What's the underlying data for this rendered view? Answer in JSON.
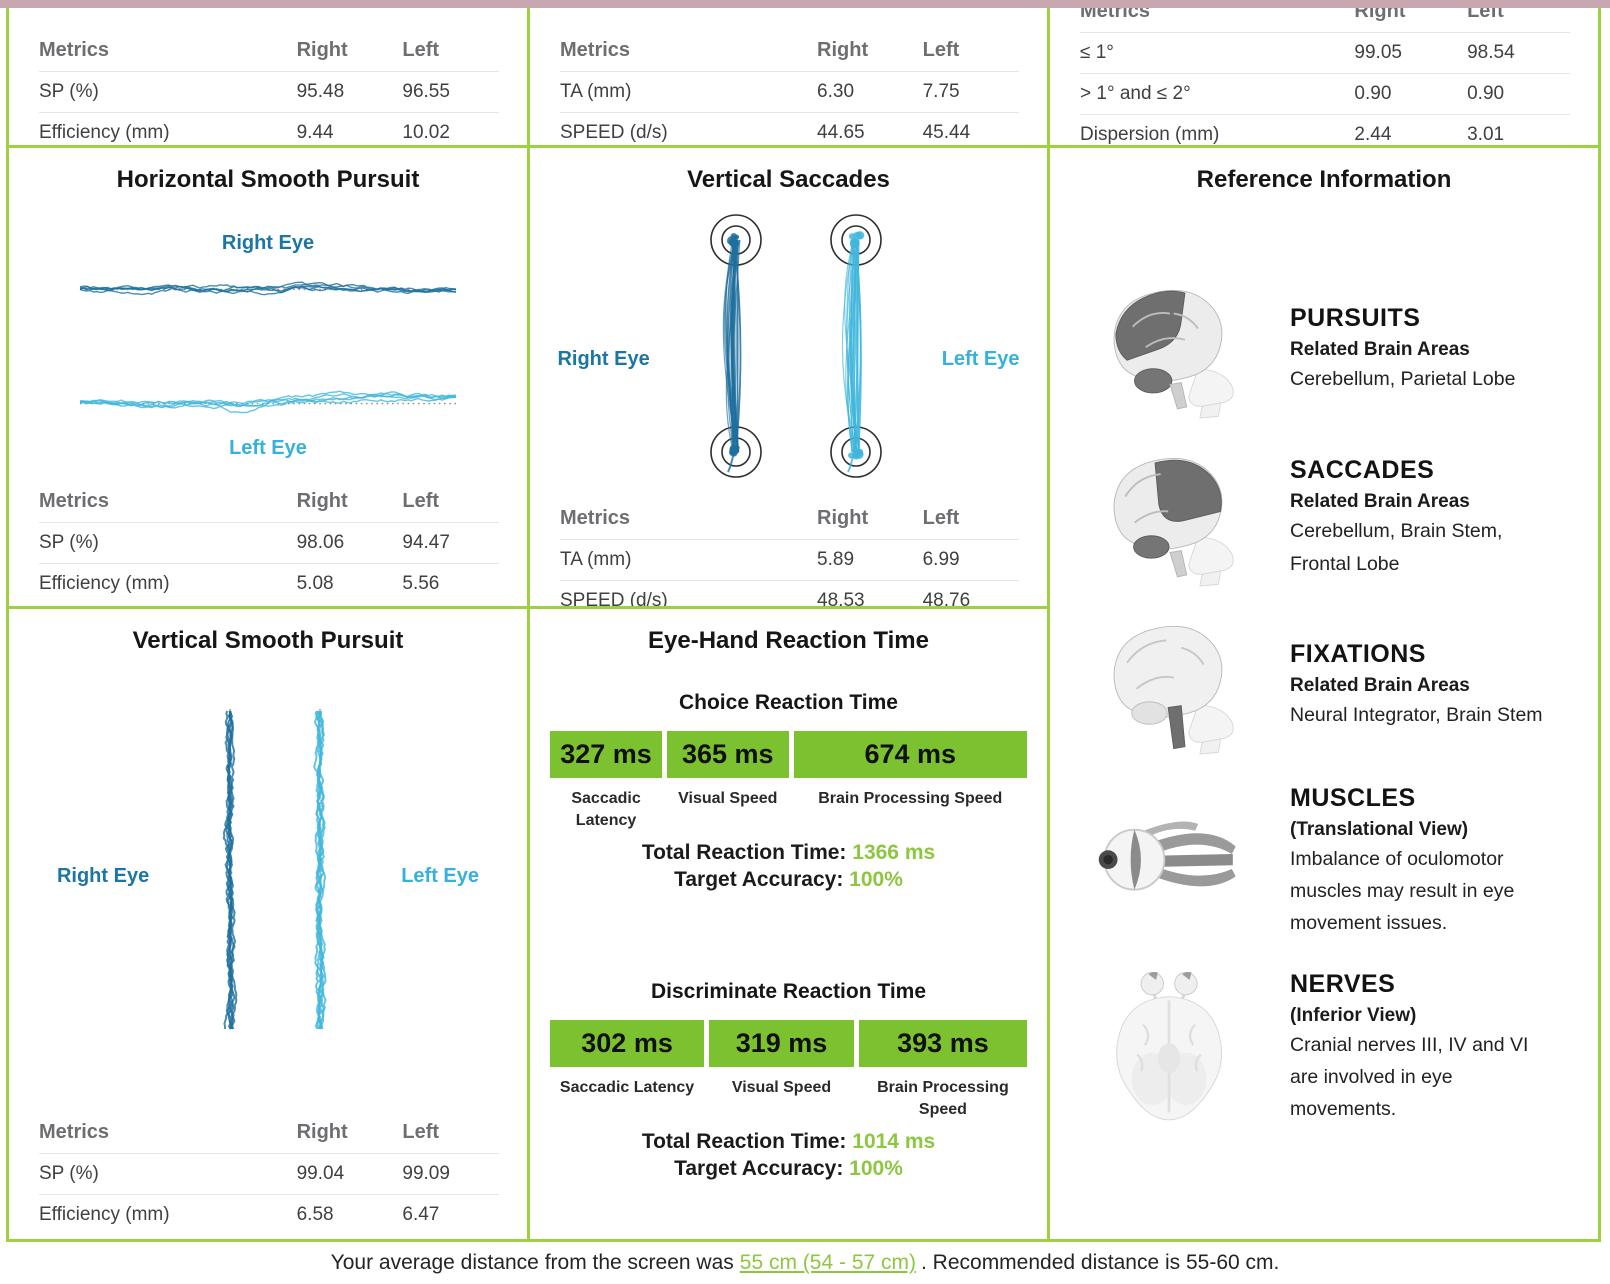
{
  "colors": {
    "grid_green": "#9ed13f",
    "box_green": "#7cc230",
    "green_text": "#8dc63f",
    "pink_strip": "#c9a7b0",
    "right_eye_trace": "#1e6f9d",
    "left_eye_trace": "#41b6dc"
  },
  "tables": {
    "headers": [
      "Metrics",
      "Right",
      "Left"
    ],
    "top_left": [
      [
        "SP (%)",
        "95.48",
        "96.55"
      ],
      [
        "Efficiency (mm)",
        "9.44",
        "10.02"
      ]
    ],
    "top_middle": [
      [
        "TA (mm)",
        "6.30",
        "7.75"
      ],
      [
        "SPEED (d/s)",
        "44.65",
        "45.44"
      ]
    ],
    "top_right": [
      [
        "≤ 1°",
        "99.05",
        "98.54"
      ],
      [
        "> 1° and ≤ 2°",
        "0.90",
        "0.90"
      ],
      [
        "Dispersion (mm)",
        "2.44",
        "3.01"
      ]
    ],
    "horizontal_pursuit": [
      [
        "SP (%)",
        "98.06",
        "94.47"
      ],
      [
        "Efficiency (mm)",
        "5.08",
        "5.56"
      ]
    ],
    "vertical_saccades": [
      [
        "TA (mm)",
        "5.89",
        "6.99"
      ],
      [
        "SPEED (d/s)",
        "48.53",
        "48.76"
      ]
    ],
    "vertical_pursuit": [
      [
        "SP (%)",
        "99.04",
        "99.09"
      ],
      [
        "Efficiency (mm)",
        "6.58",
        "6.47"
      ]
    ]
  },
  "charts": {
    "horizontal_pursuit_title": "Horizontal Smooth Pursuit",
    "vertical_saccades_title": "Vertical Saccades",
    "vertical_pursuit_title": "Vertical Smooth Pursuit",
    "right_eye_label": "Right Eye",
    "left_eye_label": "Left Eye"
  },
  "eye_hand": {
    "title": "Eye-Hand Reaction Time",
    "choice": {
      "subtitle": "Choice Reaction Time",
      "boxes": [
        "327 ms",
        "365 ms",
        "674 ms"
      ],
      "labels": [
        "Saccadic Latency",
        "Visual Speed",
        "Brain Processing Speed"
      ],
      "total_label": "Total Reaction Time:",
      "total_value": "1366 ms",
      "accuracy_label": "Target Accuracy:",
      "accuracy_value": "100%"
    },
    "discriminate": {
      "subtitle": "Discriminate Reaction Time",
      "boxes": [
        "302 ms",
        "319 ms",
        "393 ms"
      ],
      "labels": [
        "Saccadic Latency",
        "Visual Speed",
        "Brain Processing Speed"
      ],
      "total_label": "Total Reaction Time:",
      "total_value": "1014 ms",
      "accuracy_label": "Target Accuracy:",
      "accuracy_value": "100%"
    }
  },
  "reference": {
    "title": "Reference Information",
    "entries": [
      {
        "heading": "PURSUITS",
        "sub": "Related Brain Areas",
        "body": "Cerebellum, Parietal Lobe",
        "icon": "brain-side-pursuits"
      },
      {
        "heading": "SACCADES",
        "sub": "Related Brain Areas",
        "body": "Cerebellum, Brain Stem, Frontal Lobe",
        "icon": "brain-side-saccades"
      },
      {
        "heading": "FIXATIONS",
        "sub": "Related Brain Areas",
        "body": "Neural Integrator, Brain Stem",
        "icon": "brain-side-fixations"
      },
      {
        "heading": "MUSCLES",
        "sub": "(Translational View)",
        "body": "Imbalance of oculomotor muscles may result in eye movement issues.",
        "icon": "eye-muscles"
      },
      {
        "heading": "NERVES",
        "sub": "(Inferior View)",
        "body": "Cranial nerves III, IV and VI are involved in eye movements.",
        "icon": "brain-inferior-nerves"
      }
    ]
  },
  "footer": {
    "prefix": "Your average distance from the screen was",
    "link": "55 cm (54 - 57 cm)",
    "suffix": ". Recommended distance is 55-60 cm."
  }
}
